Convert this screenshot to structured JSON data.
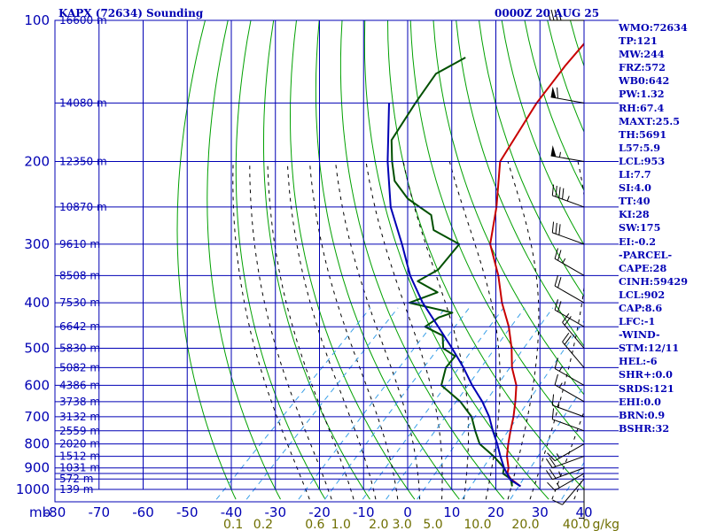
{
  "title": "KAPX (72634) Sounding",
  "valid_time": "0000Z 20 AUG 25",
  "colors": {
    "frame": "#0000b4",
    "dry_adiabat": "#00a000",
    "moist_adiabat": "#000000",
    "mixing_ratio": "#3aa0e8",
    "temperature": "#c80000",
    "dewpoint": "#005000",
    "parcel": "#0000b4",
    "wind": "#000000",
    "mixing_ratio_labels": "#6e6e00"
  },
  "indices": [
    "WMO:72634",
    "TP:121",
    "MW:244",
    "FRZ:572",
    "WB0:642",
    "PW:1.32",
    "RH:67.4",
    "MAXT:25.5",
    "TH:5691",
    "L57:5.9",
    "LCL:953",
    "LI:7.7",
    "SI:4.0",
    "TT:40",
    "KI:28",
    "SW:175",
    "EI:-0.2",
    "-PARCEL-",
    "CAPE:28",
    "CINH:59429",
    "LCL:902",
    "CAP:8.6",
    "LFC:-1",
    "-WIND-",
    "STM:12/11",
    "HEL:-6",
    "SHR+:0.0",
    "SRDS:121",
    "EHI:0.0",
    "BRN:0.9",
    "BSHR:32"
  ],
  "chart_data": {
    "type": "skew-t log-p sounding",
    "x_axis_title": "mb",
    "x_range": [
      -80,
      40
    ],
    "x_ticks": [
      -80,
      -70,
      -60,
      -50,
      -40,
      -30,
      -20,
      -10,
      0,
      10,
      20,
      30,
      40
    ],
    "y_range": [
      1000,
      100
    ],
    "pressure_ticks": [
      100,
      200,
      300,
      400,
      500,
      600,
      700,
      800,
      900,
      1000
    ],
    "pressure_lines": [
      100,
      150,
      200,
      250,
      300,
      350,
      400,
      450,
      500,
      550,
      600,
      650,
      700,
      750,
      800,
      850,
      900,
      925,
      950,
      1000
    ],
    "height_labels": [
      {
        "p": 100,
        "label": "16600 m"
      },
      {
        "p": 150,
        "label": "14080 m"
      },
      {
        "p": 200,
        "label": "12350 m"
      },
      {
        "p": 250,
        "label": "10870 m"
      },
      {
        "p": 300,
        "label": "9610 m"
      },
      {
        "p": 350,
        "label": "8508 m"
      },
      {
        "p": 400,
        "label": "7530 m"
      },
      {
        "p": 450,
        "label": "6642 m"
      },
      {
        "p": 500,
        "label": "5830 m"
      },
      {
        "p": 550,
        "label": "5082 m"
      },
      {
        "p": 600,
        "label": "4386 m"
      },
      {
        "p": 650,
        "label": "3738 m"
      },
      {
        "p": 700,
        "label": "3132 m"
      },
      {
        "p": 750,
        "label": "2559 m"
      },
      {
        "p": 800,
        "label": "2020 m"
      },
      {
        "p": 850,
        "label": "1512 m"
      },
      {
        "p": 900,
        "label": "1031 m"
      },
      {
        "p": 950,
        "label": "572 m"
      },
      {
        "p": 1000,
        "label": "139 m"
      }
    ],
    "mixing_ratio_values": [
      0.1,
      0.2,
      0.6,
      1.0,
      2.0,
      3.0,
      5.0,
      10.0,
      20.0,
      40.0
    ],
    "mixing_ratio_label_texts": [
      "0.1",
      "0.2",
      "0.6",
      "1.0",
      "2.0",
      "3.0",
      "5.0",
      "10.0",
      "20.0",
      "40.0"
    ],
    "mixing_ratio_unit": "g/kg",
    "series": [
      {
        "name": "temperature",
        "points": [
          [
            985,
            24.9
          ],
          [
            950,
            21.0
          ],
          [
            925,
            19.0
          ],
          [
            900,
            18.0
          ],
          [
            850,
            15.0
          ],
          [
            800,
            12.5
          ],
          [
            750,
            10.0
          ],
          [
            700,
            7.5
          ],
          [
            650,
            4.5
          ],
          [
            600,
            1.0
          ],
          [
            550,
            -4.0
          ],
          [
            500,
            -8.5
          ],
          [
            450,
            -14.0
          ],
          [
            400,
            -21.0
          ],
          [
            350,
            -28.0
          ],
          [
            300,
            -37.0
          ],
          [
            250,
            -44.0
          ],
          [
            200,
            -53.5
          ],
          [
            150,
            -58.5
          ],
          [
            125,
            -60.5
          ],
          [
            100,
            -62.0
          ]
        ]
      },
      {
        "name": "dewpoint",
        "points": [
          [
            985,
            23.0
          ],
          [
            950,
            21.0
          ],
          [
            925,
            18.0
          ],
          [
            900,
            17.0
          ],
          [
            850,
            12.0
          ],
          [
            800,
            6.0
          ],
          [
            750,
            2.0
          ],
          [
            700,
            -2.0
          ],
          [
            650,
            -8.0
          ],
          [
            600,
            -16.0
          ],
          [
            550,
            -19.0
          ],
          [
            520,
            -19.5
          ],
          [
            500,
            -24.0
          ],
          [
            470,
            -27.0
          ],
          [
            450,
            -33.0
          ],
          [
            430,
            -32.0
          ],
          [
            420,
            -30.0
          ],
          [
            400,
            -42.0
          ],
          [
            380,
            -38.0
          ],
          [
            360,
            -45.0
          ],
          [
            340,
            -43.0
          ],
          [
            300,
            -44.0
          ],
          [
            280,
            -53.0
          ],
          [
            260,
            -57.0
          ],
          [
            240,
            -66.0
          ],
          [
            220,
            -73.0
          ],
          [
            200,
            -78.0
          ],
          [
            180,
            -83.0
          ],
          [
            150,
            -86.0
          ],
          [
            130,
            -88.0
          ],
          [
            120,
            -85.0
          ]
        ]
      },
      {
        "name": "parcel",
        "points": [
          [
            985,
            24.9
          ],
          [
            953,
            21.0
          ],
          [
            900,
            17.0
          ],
          [
            850,
            13.5
          ],
          [
            800,
            10.0
          ],
          [
            750,
            6.0
          ],
          [
            700,
            2.0
          ],
          [
            650,
            -3.0
          ],
          [
            600,
            -9.0
          ],
          [
            550,
            -15.0
          ],
          [
            500,
            -22.0
          ],
          [
            450,
            -30.0
          ],
          [
            400,
            -39.0
          ],
          [
            350,
            -48.0
          ],
          [
            300,
            -57.0
          ],
          [
            250,
            -68.0
          ],
          [
            200,
            -79.0
          ],
          [
            150,
            -92.0
          ]
        ]
      }
    ],
    "wind_barbs": [
      {
        "p": 985,
        "dir": 180,
        "kt": 5
      },
      {
        "p": 950,
        "dir": 220,
        "kt": 10
      },
      {
        "p": 925,
        "dir": 240,
        "kt": 15
      },
      {
        "p": 900,
        "dir": 250,
        "kt": 25
      },
      {
        "p": 850,
        "dir": 250,
        "kt": 20
      },
      {
        "p": 800,
        "dir": 240,
        "kt": 15
      },
      {
        "p": 750,
        "dir": 290,
        "kt": 10
      },
      {
        "p": 700,
        "dir": 290,
        "kt": 15
      },
      {
        "p": 650,
        "dir": 300,
        "kt": 15
      },
      {
        "p": 600,
        "dir": 300,
        "kt": 15
      },
      {
        "p": 550,
        "dir": 320,
        "kt": 20
      },
      {
        "p": 500,
        "dir": 320,
        "kt": 20
      },
      {
        "p": 450,
        "dir": 300,
        "kt": 20
      },
      {
        "p": 400,
        "dir": 300,
        "kt": 20
      },
      {
        "p": 350,
        "dir": 300,
        "kt": 25
      },
      {
        "p": 300,
        "dir": 290,
        "kt": 30
      },
      {
        "p": 250,
        "dir": 290,
        "kt": 45
      },
      {
        "p": 200,
        "dir": 280,
        "kt": 55
      },
      {
        "p": 150,
        "dir": 280,
        "kt": 60
      },
      {
        "p": 100,
        "dir": 270,
        "kt": 40
      }
    ]
  }
}
